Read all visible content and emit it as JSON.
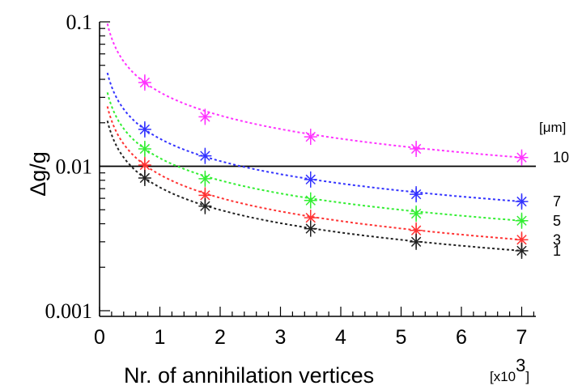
{
  "chart_data": {
    "type": "scatter",
    "title": "",
    "ylabel": "Δg/g",
    "xlabel": "Nr. of annihilation vertices",
    "x_scale_label": {
      "prefix": "[x10",
      "exponent": "3",
      "suffix": "]"
    },
    "yscale": "log",
    "xlim": [
      0,
      7.2
    ],
    "ylim": [
      0.001,
      0.1
    ],
    "y_ticks": [
      {
        "value": 0.1,
        "label": "0.1"
      },
      {
        "value": 0.01,
        "label": "0.01"
      },
      {
        "value": 0.001,
        "label": "0.001"
      }
    ],
    "x_ticks": [
      {
        "value": 0,
        "label": "0"
      },
      {
        "value": 1,
        "label": "1"
      },
      {
        "value": 2,
        "label": "2"
      },
      {
        "value": 3,
        "label": "3"
      },
      {
        "value": 4,
        "label": "4"
      },
      {
        "value": 5,
        "label": "5"
      },
      {
        "value": 6,
        "label": "6"
      },
      {
        "value": 7,
        "label": "7"
      }
    ],
    "reference_line": {
      "y": 0.01,
      "color": "#000000"
    },
    "legend_title": "[μm]",
    "series": [
      {
        "name": "10",
        "color": "#ff33ff",
        "x": [
          0.75,
          1.75,
          3.5,
          5.25,
          7.0
        ],
        "y": [
          0.038,
          0.022,
          0.016,
          0.0132,
          0.0115
        ]
      },
      {
        "name": "7",
        "color": "#3333ff",
        "x": [
          0.75,
          1.75,
          3.5,
          5.25,
          7.0
        ],
        "y": [
          0.018,
          0.0118,
          0.0081,
          0.0064,
          0.0057
        ]
      },
      {
        "name": "5",
        "color": "#33ee33",
        "x": [
          0.75,
          1.75,
          3.5,
          5.25,
          7.0
        ],
        "y": [
          0.0132,
          0.0082,
          0.0058,
          0.0047,
          0.0042
        ]
      },
      {
        "name": "3",
        "color": "#ff3333",
        "x": [
          0.75,
          1.75,
          3.5,
          5.25,
          7.0
        ],
        "y": [
          0.0102,
          0.0063,
          0.0044,
          0.0036,
          0.0031
        ]
      },
      {
        "name": "1",
        "color": "#222222",
        "x": [
          0.75,
          1.75,
          3.5,
          5.25,
          7.0
        ],
        "y": [
          0.0083,
          0.0053,
          0.0037,
          0.003,
          0.0026
        ]
      }
    ]
  }
}
